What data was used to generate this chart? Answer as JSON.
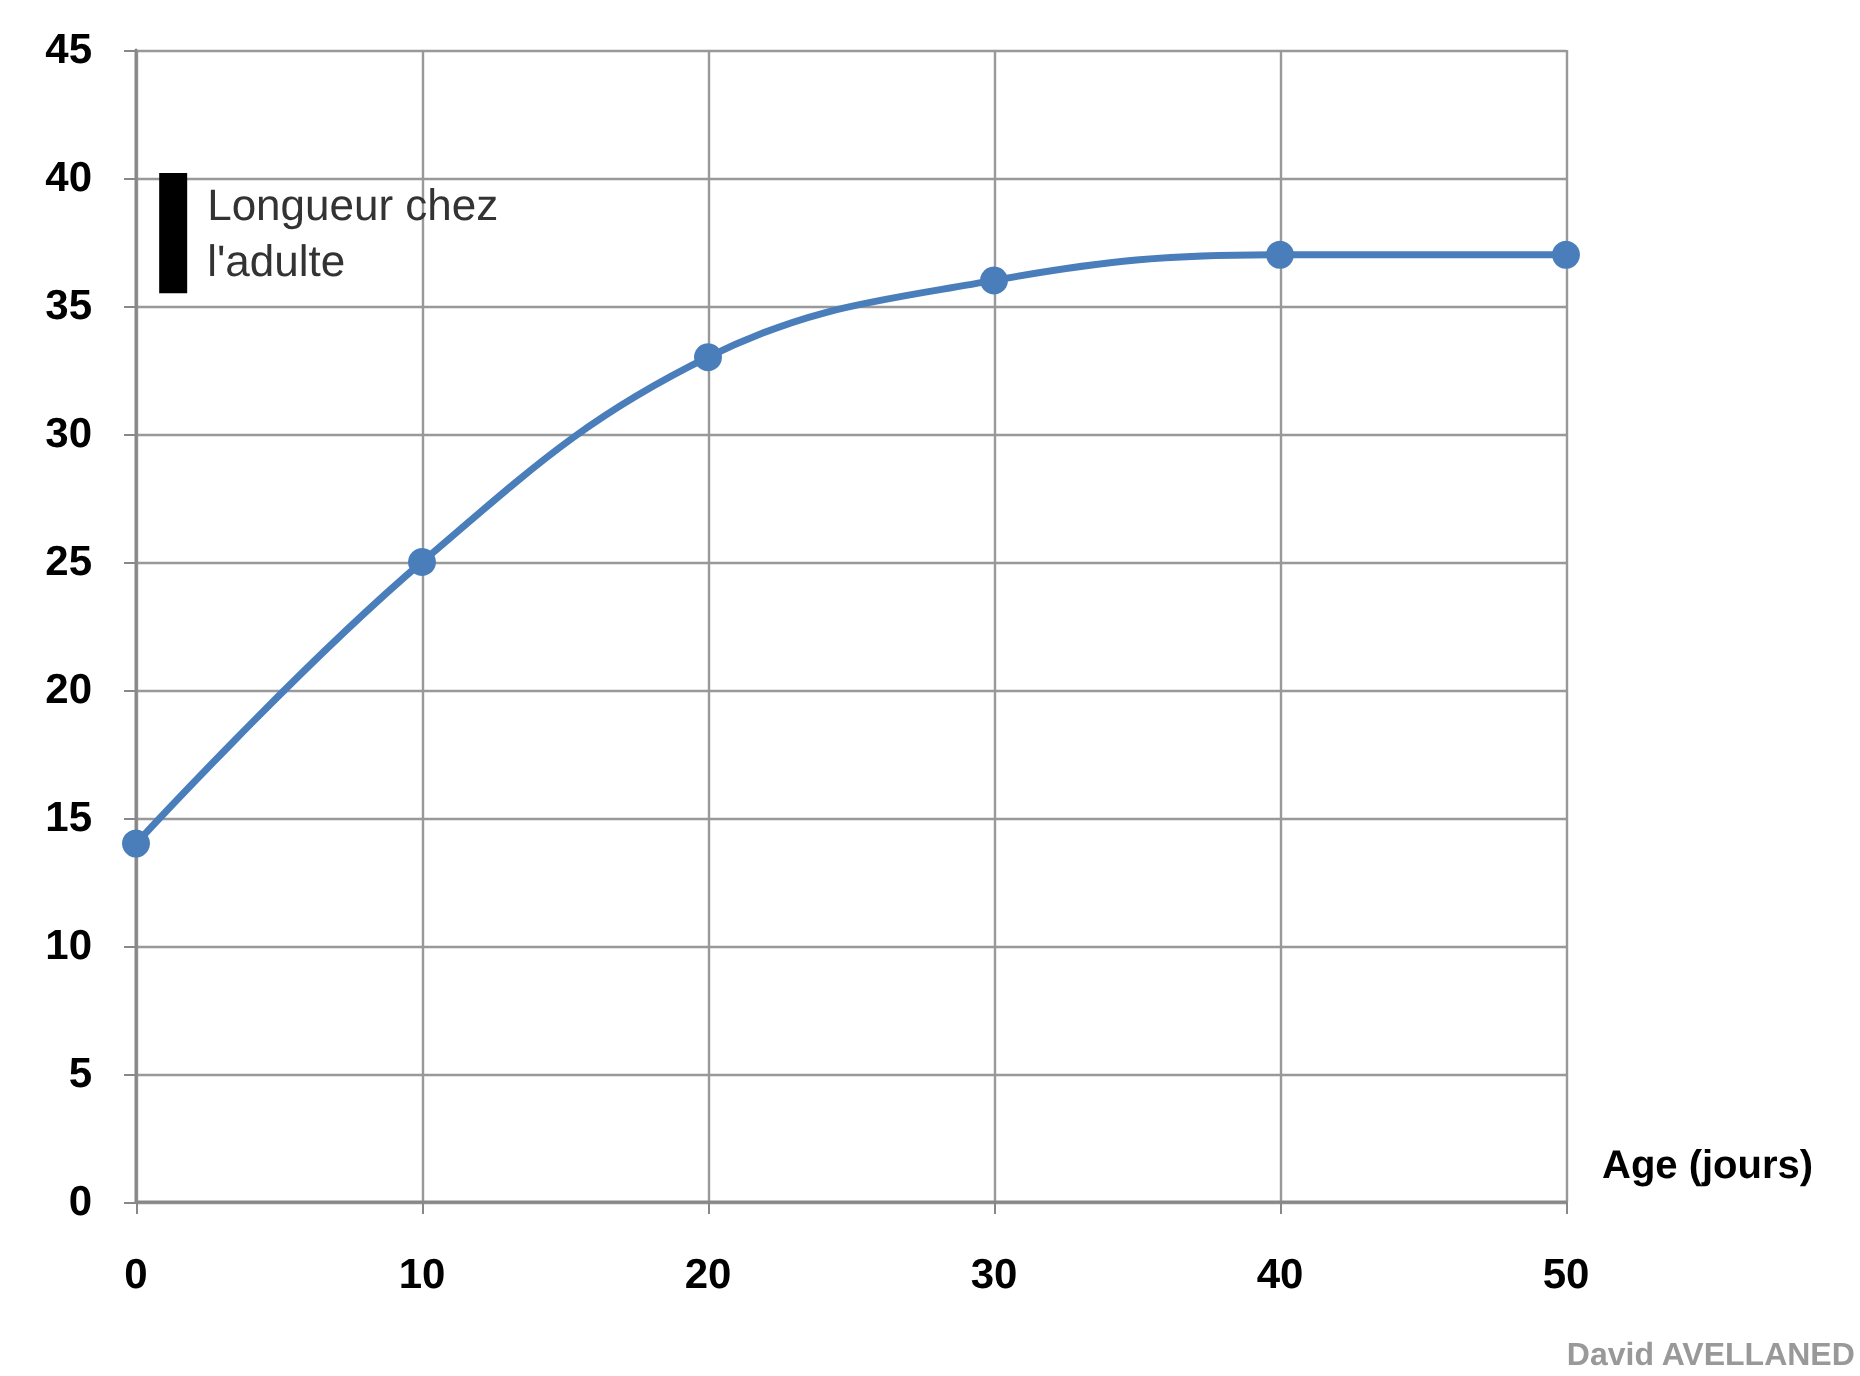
{
  "chart_data": {
    "type": "line",
    "xlabel": "Age (jours)",
    "x": [
      0,
      10,
      20,
      30,
      40,
      50
    ],
    "series": [
      {
        "color": "#4a7ebb",
        "values": [
          14,
          25,
          33,
          36,
          37,
          37
        ]
      },
      {
        "type": "bar",
        "name": "Longueur chez l'adulte",
        "color": "#000000",
        "x": [
          1.3
        ],
        "base": [
          35.5
        ],
        "values": [
          4.7
        ]
      }
    ],
    "xlim": [
      0,
      50
    ],
    "xticks": [
      0,
      10,
      20,
      30,
      40,
      50
    ],
    "ylim": [
      0,
      45
    ],
    "yticks": [
      0,
      5,
      10,
      15,
      20,
      25,
      30,
      35,
      40,
      45
    ],
    "grid": true,
    "marker": "circle",
    "line_style": "solid",
    "legend": false,
    "annotations": [
      "David AVELLANED"
    ]
  }
}
